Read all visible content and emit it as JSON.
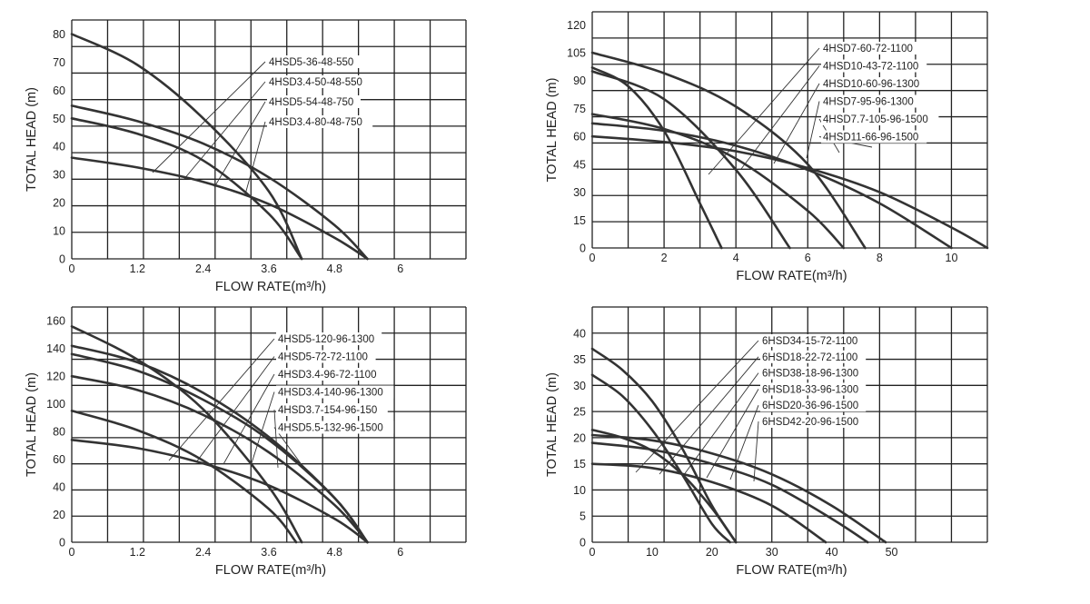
{
  "chart_data": [
    {
      "type": "line",
      "xlabel": "FLOW RATE(m³/h)",
      "ylabel": "TOTAL HEAD  (m)",
      "xlim": [
        0,
        7.2
      ],
      "ylim": [
        0,
        85
      ],
      "xticks": [
        0,
        1.2,
        2.4,
        3.6,
        4.8,
        6
      ],
      "xtick_labels": [
        "0",
        "1.2",
        "2.4",
        "3.6",
        "4.8",
        "6"
      ],
      "yticks": [
        0,
        10,
        20,
        30,
        40,
        50,
        60,
        70,
        80
      ],
      "grid": true,
      "series": [
        {
          "name": "4HSD5-36-48-550",
          "x": [
            0,
            1.2,
            2.4,
            3.6,
            4.8,
            5.4
          ],
          "y": [
            36,
            32.5,
            27.4,
            19.5,
            7.5,
            0
          ]
        },
        {
          "name": "4HSD3.4-50-48-550",
          "x": [
            0,
            1.2,
            2.4,
            3.6,
            4.2
          ],
          "y": [
            50,
            44.5,
            35,
            16,
            0
          ]
        },
        {
          "name": "4HSD5-54-48-750",
          "x": [
            0,
            1.2,
            2.4,
            3.6,
            4.8,
            5.4
          ],
          "y": [
            54.5,
            49,
            41,
            29,
            12,
            0
          ]
        },
        {
          "name": "4HSD3.4-80-48-750",
          "x": [
            0,
            1.2,
            2.4,
            3.6,
            4.2
          ],
          "y": [
            80,
            69,
            50,
            24,
            0
          ]
        }
      ]
    },
    {
      "type": "line",
      "xlabel": "FLOW RATE(m³/h)",
      "ylabel": "TOTAL HEAD  (m)",
      "xlim": [
        0,
        11
      ],
      "ylim": [
        0,
        127
      ],
      "xticks": [
        0,
        2,
        4,
        6,
        8,
        10
      ],
      "xtick_labels": [
        "0",
        "2",
        "4",
        "6",
        "8",
        "10"
      ],
      "yticks": [
        0,
        15,
        30,
        45,
        60,
        75,
        90,
        105,
        120
      ],
      "grid": true,
      "series": [
        {
          "name": "4HSD7-60-72-1100",
          "x": [
            0,
            2,
            4,
            6,
            7
          ],
          "y": [
            72,
            64,
            48,
            20,
            0
          ]
        },
        {
          "name": "4HSD10-43-72-1100",
          "x": [
            0,
            2,
            4,
            6,
            8,
            10,
            11
          ],
          "y": [
            60,
            57,
            52,
            43,
            30,
            11,
            0
          ]
        },
        {
          "name": "4HSD10-60-96-1300",
          "x": [
            0,
            2,
            4,
            6,
            8,
            10
          ],
          "y": [
            67,
            63,
            55,
            42,
            24,
            0
          ]
        },
        {
          "name": "4HSD7-95-96-1300",
          "x": [
            0,
            2,
            4,
            5.5
          ],
          "y": [
            95,
            80,
            42,
            0
          ]
        },
        {
          "name": "4HSD7.7-105-96-1500",
          "x": [
            0,
            2,
            4,
            6,
            7.6
          ],
          "y": [
            105,
            94,
            76,
            45,
            0
          ]
        },
        {
          "name": "4HSD11-66-96-1500",
          "x": [
            0,
            1,
            2,
            3,
            3.6
          ],
          "y": [
            97,
            87,
            63,
            24,
            0
          ]
        }
      ]
    },
    {
      "type": "line",
      "xlabel": "FLOW RATE(m³/h)",
      "ylabel": "TOTAL HEAD  (m)",
      "xlim": [
        0,
        7.2
      ],
      "ylim": [
        0,
        170
      ],
      "xticks": [
        0,
        1.2,
        2.4,
        3.6,
        4.8,
        6
      ],
      "xtick_labels": [
        "0",
        "1.2",
        "2.4",
        "3.6",
        "4.8",
        "6"
      ],
      "yticks": [
        0,
        20,
        40,
        60,
        80,
        100,
        120,
        140,
        160
      ],
      "grid": true,
      "series": [
        {
          "name": "4HSD5-120-96-1300",
          "x": [
            0,
            1.2,
            2.4,
            3.6,
            4.8,
            5.4
          ],
          "y": [
            74,
            68,
            57,
            41,
            17,
            0
          ]
        },
        {
          "name": "4HSD5-72-72-1100",
          "x": [
            0,
            1.2,
            2.4,
            3.6,
            4.8,
            5.4
          ],
          "y": [
            120,
            110,
            92,
            65,
            27,
            0
          ]
        },
        {
          "name": "4HSD3.4-96-72-1100",
          "x": [
            0,
            1.2,
            2.4,
            3.6,
            4.1
          ],
          "y": [
            95,
            81,
            59,
            24,
            0
          ]
        },
        {
          "name": "4HSD3.4-140-96-1300",
          "x": [
            0,
            1.2,
            2.4,
            3.6,
            4.8,
            5.4
          ],
          "y": [
            136,
            124,
            103,
            74,
            32,
            0
          ]
        },
        {
          "name": "4HSD3.7-154-96-150",
          "x": [
            0,
            1.2,
            2.4,
            3.6,
            4.8,
            5.4
          ],
          "y": [
            142,
            130,
            108,
            76,
            32,
            0
          ]
        },
        {
          "name": "4HSD5.5-132-96-1500",
          "x": [
            0,
            1.2,
            2.4,
            3.6,
            4.2
          ],
          "y": [
            156,
            132,
            96,
            40,
            0
          ]
        }
      ]
    },
    {
      "type": "line",
      "xlabel": "FLOW RATE(m³/h)",
      "ylabel": "TOTAL HEAD  (m)",
      "xlim": [
        0,
        66
      ],
      "ylim": [
        0,
        45
      ],
      "xticks": [
        0,
        10,
        20,
        30,
        40,
        50
      ],
      "xtick_labels": [
        "0",
        "10",
        "20",
        "30",
        "40",
        "50"
      ],
      "yticks": [
        0,
        5,
        10,
        15,
        20,
        25,
        30,
        35,
        40
      ],
      "grid": true,
      "series": [
        {
          "name": "6HSD34-15-72-1100",
          "x": [
            0,
            10,
            20,
            30,
            40,
            46
          ],
          "y": [
            19,
            17.7,
            15,
            11,
            4.5,
            0
          ]
        },
        {
          "name": "6HSD18-22-72-1100",
          "x": [
            0,
            5,
            10,
            15,
            20,
            24
          ],
          "y": [
            21.5,
            20,
            17.5,
            13,
            6.5,
            0
          ]
        },
        {
          "name": "6HSD38-18-96-1300",
          "x": [
            0,
            10,
            20,
            30,
            40,
            49
          ],
          "y": [
            20.5,
            19.5,
            17,
            13,
            7,
            0
          ]
        },
        {
          "name": "6HSD18-33-96-1300",
          "x": [
            0,
            5,
            10,
            15,
            20,
            23
          ],
          "y": [
            32,
            28,
            21.5,
            13,
            3.5,
            0
          ]
        },
        {
          "name": "6HSD20-36-96-1500",
          "x": [
            0,
            10,
            20,
            30,
            39
          ],
          "y": [
            15,
            14.2,
            11.5,
            7,
            0
          ]
        },
        {
          "name": "6HSD42-20-96-1500",
          "x": [
            0,
            5,
            10,
            15,
            20,
            24
          ],
          "y": [
            37,
            33,
            27,
            18,
            7,
            0
          ]
        }
      ]
    }
  ]
}
